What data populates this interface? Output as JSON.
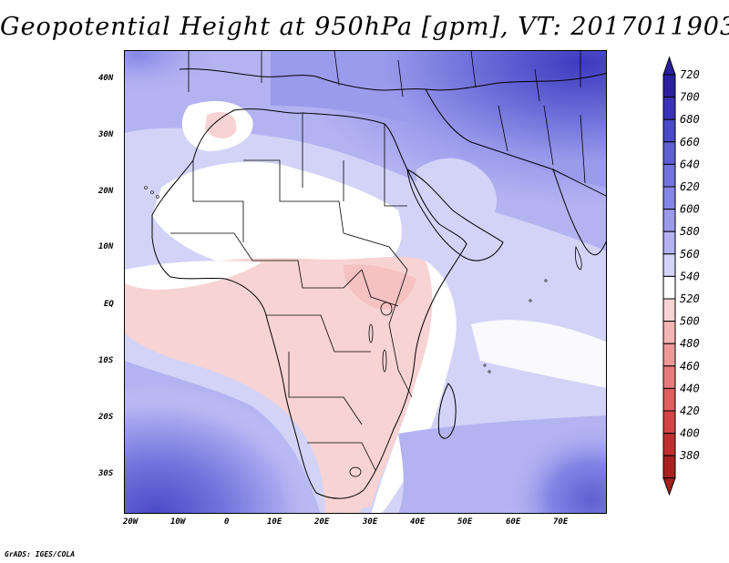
{
  "title": "Geopotential Height at 950hPa [gpm], VT: 2017011903",
  "credit": "GrADS: IGES/COLA",
  "axes": {
    "lat_labels": [
      "40N",
      "30N",
      "20N",
      "10N",
      "EQ",
      "10S",
      "20S",
      "30S"
    ],
    "lon_labels": [
      "20W",
      "10W",
      "0",
      "10E",
      "20E",
      "30E",
      "40E",
      "50E",
      "60E",
      "70E"
    ]
  },
  "colorbar": {
    "levels": [
      "720",
      "700",
      "680",
      "660",
      "640",
      "620",
      "600",
      "580",
      "560",
      "540",
      "520",
      "500",
      "480",
      "460",
      "440",
      "420",
      "400",
      "380"
    ],
    "colors": [
      "#2a1f9e",
      "#3a33b8",
      "#4a49c6",
      "#5f5fd2",
      "#7373dd",
      "#8585e6",
      "#9b9bec",
      "#b3b3f2",
      "#d3d3f7",
      "#ffffff",
      "#f8d3d3",
      "#f4b5b5",
      "#ee9898",
      "#e77b7b",
      "#df5e5e",
      "#d34545",
      "#bf2f2f",
      "#a82020"
    ]
  },
  "colors": {
    "deep_blue": "#3d3abf",
    "mid_blue": "#8585e6",
    "light_blue": "#d3d3f7",
    "white": "#ffffff",
    "light_pink": "#f8d3d3"
  }
}
